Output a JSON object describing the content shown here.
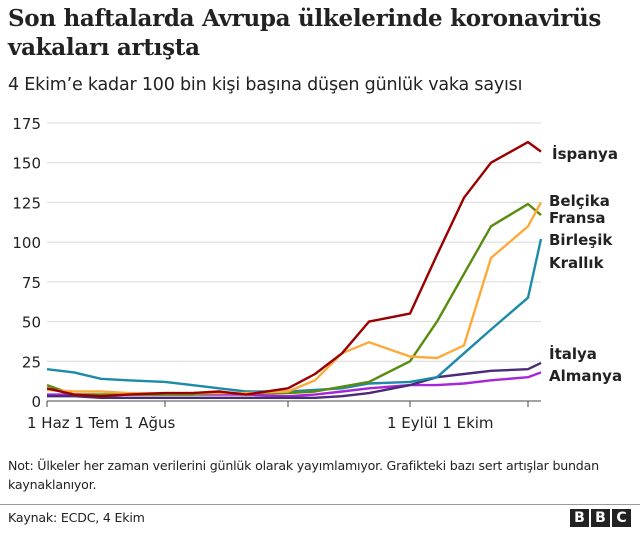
{
  "header": {
    "title": "Son haftalarda Avrupa ülkelerinde koronavirüs vakaları artışta",
    "subtitle": "4 Ekim’e kadar 100 bin kişi başına düşen günlük vaka sayısı"
  },
  "footer": {
    "note": "Not: Ülkeler her zaman verilerini günlük olarak yayımlamıyor. Grafikteki bazı sert artışlar bundan kaynaklanıyor.",
    "source": "Kaynak: ECDC, 4 Ekim",
    "logo": [
      "B",
      "B",
      "C"
    ]
  },
  "chart_data": {
    "type": "line",
    "title": "Son haftalarda Avrupa ülkelerinde koronavirüs vakaları artışta",
    "subtitle": "4 Ekim’e kadar 100 bin kişi başına düşen günlük vaka sayısı",
    "xlabel": "",
    "ylabel": "",
    "ylim": [
      0,
      175
    ],
    "yticks": [
      0,
      25,
      50,
      75,
      100,
      125,
      150,
      175
    ],
    "xtick_labels": [
      "1 Haz",
      "1 Tem",
      "1 Ağus",
      "1 Eylül",
      "1 Ekim"
    ],
    "x_label_groups": [
      "1 Haz 1 Tem 1 Ağus",
      "1 Eylül 1 Ekim"
    ],
    "grid": true,
    "legend_position": "direct labels at right end of lines",
    "x": [
      "1 Haz",
      "8 Haz",
      "15 Haz",
      "22 Haz",
      "1 Tem",
      "8 Tem",
      "15 Tem",
      "22 Tem",
      "1 Ağus",
      "8 Ağus",
      "15 Ağus",
      "22 Ağus",
      "1 Eylül",
      "8 Eylül",
      "15 Eylül",
      "22 Eylül",
      "1 Ekim",
      "4 Ekim"
    ],
    "series": [
      {
        "name": "İspanya",
        "color": "#990000",
        "values": [
          8,
          4,
          3,
          4,
          5,
          5,
          6,
          4,
          8,
          17,
          30,
          50,
          55,
          92,
          128,
          150,
          163,
          157
        ]
      },
      {
        "name": "Belçika",
        "color": "#fdaa3a",
        "values": [
          7,
          6,
          6,
          5,
          5,
          5,
          5,
          5,
          6,
          13,
          30,
          37,
          28,
          27,
          35,
          90,
          110,
          125
        ]
      },
      {
        "name": "Fransa",
        "color": "#588c0f",
        "values": [
          10,
          4,
          4,
          4,
          4,
          4,
          5,
          5,
          5,
          6,
          9,
          12,
          25,
          50,
          80,
          110,
          124,
          117
        ]
      },
      {
        "name": "Birleşik Krallık",
        "color": "#1d8aa8",
        "values": [
          20,
          18,
          14,
          13,
          12,
          10,
          8,
          6,
          6,
          7,
          8,
          11,
          12,
          15,
          30,
          45,
          65,
          102
        ]
      },
      {
        "name": "İtalya",
        "color": "#4a2b77",
        "values": [
          3,
          3,
          2,
          2,
          2,
          2,
          2,
          2,
          2,
          2,
          3,
          5,
          10,
          15,
          17,
          19,
          20,
          24
        ]
      },
      {
        "name": "Almanya",
        "color": "#a626d8",
        "values": [
          4,
          4,
          4,
          4,
          4,
          4,
          4,
          4,
          3,
          4,
          6,
          8,
          10,
          10,
          11,
          13,
          15,
          18
        ]
      }
    ]
  }
}
